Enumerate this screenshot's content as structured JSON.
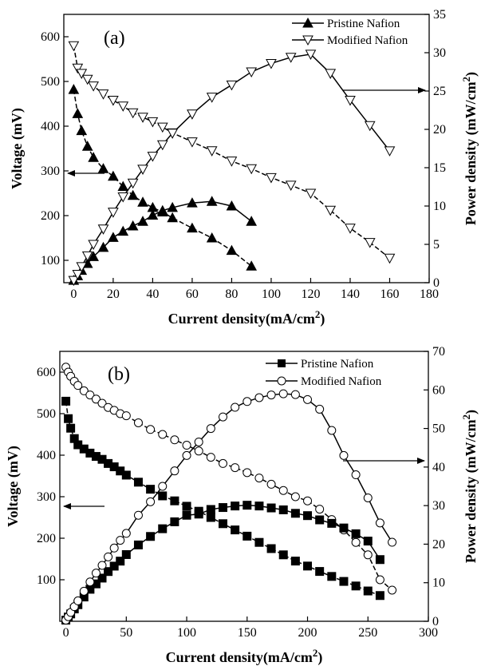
{
  "chart_data": [
    {
      "type": "line",
      "panel_label": "(a)",
      "xlabel": "Current density(mA/cm2)",
      "ylabel_left": "Voltage (mV)",
      "ylabel_right": "Power density (mW/cm2)",
      "xlim": [
        -5,
        180
      ],
      "ylim_left": [
        50,
        650
      ],
      "ylim_right": [
        0,
        35
      ],
      "x_ticks": [
        0,
        20,
        40,
        60,
        80,
        100,
        120,
        140,
        160,
        180
      ],
      "y_left_ticks": [
        100,
        200,
        300,
        400,
        500,
        600
      ],
      "y_right_ticks": [
        0,
        5,
        10,
        15,
        20,
        25,
        30,
        35
      ],
      "legend_position": "top-right",
      "legend": [
        "Pristine Nafion",
        "Modified Nafion"
      ],
      "series": [
        {
          "name": "Pristine Nafion",
          "axis": "left",
          "marker": "triangle-up",
          "x": [
            0,
            2,
            4,
            7,
            10,
            15,
            20,
            25,
            30,
            35,
            40,
            45,
            50,
            60,
            70,
            80,
            90
          ],
          "y": [
            482,
            428,
            390,
            355,
            330,
            305,
            288,
            265,
            245,
            230,
            218,
            208,
            195,
            172,
            150,
            122,
            87
          ]
        },
        {
          "name": "Modified Nafion",
          "axis": "left",
          "marker": "triangle-down",
          "x": [
            0,
            2,
            4,
            7,
            10,
            15,
            20,
            25,
            30,
            35,
            40,
            45,
            50,
            60,
            70,
            80,
            90,
            100,
            110,
            120,
            130,
            140,
            150,
            160
          ],
          "y": [
            580,
            530,
            518,
            505,
            490,
            472,
            458,
            445,
            430,
            420,
            410,
            398,
            385,
            365,
            345,
            322,
            305,
            285,
            268,
            250,
            212,
            172,
            140,
            105
          ]
        },
        {
          "name": "",
          "axis": "right",
          "marker": "triangle-up",
          "x": [
            0,
            2,
            4,
            7,
            10,
            15,
            20,
            25,
            30,
            35,
            40,
            45,
            50,
            60,
            70,
            80,
            90
          ],
          "y": [
            0.3,
            0.9,
            1.6,
            2.5,
            3.4,
            4.6,
            5.9,
            6.7,
            7.4,
            8.0,
            8.8,
            9.4,
            9.8,
            10.4,
            10.6,
            10.0,
            8.0
          ]
        },
        {
          "name": "",
          "axis": "right",
          "marker": "triangle-down",
          "x": [
            0,
            2,
            4,
            7,
            10,
            15,
            20,
            25,
            30,
            35,
            40,
            45,
            50,
            60,
            70,
            80,
            90,
            100,
            110,
            120,
            130,
            140,
            150,
            160
          ],
          "y": [
            0.3,
            1.1,
            2.1,
            3.5,
            5.0,
            7.0,
            9.2,
            11.2,
            13.0,
            14.8,
            16.5,
            18.0,
            19.5,
            22.0,
            24.2,
            25.8,
            27.5,
            28.6,
            29.4,
            29.8,
            27.3,
            23.8,
            20.5,
            17.2
          ]
        }
      ]
    },
    {
      "type": "line",
      "panel_label": "(b)",
      "xlabel": "Current density(mA/cm2)",
      "ylabel_left": "Voltage (mV)",
      "ylabel_right": "Power density (mW/cm2)",
      "xlim": [
        -5,
        300
      ],
      "ylim_left": [
        0,
        650
      ],
      "ylim_right": [
        0,
        70
      ],
      "x_ticks": [
        0,
        50,
        100,
        150,
        200,
        250,
        300
      ],
      "y_left_ticks": [
        100,
        200,
        300,
        400,
        500,
        600
      ],
      "y_right_ticks": [
        0,
        10,
        20,
        30,
        40,
        50,
        60,
        70
      ],
      "legend_position": "top-right",
      "legend": [
        "Pristine Nafion",
        "Modified Nafion"
      ],
      "series": [
        {
          "name": "Pristine Nafion",
          "axis": "left",
          "marker": "square",
          "x": [
            0,
            2,
            4,
            7,
            10,
            15,
            20,
            25,
            30,
            35,
            40,
            45,
            50,
            60,
            70,
            80,
            90,
            100,
            110,
            120,
            130,
            140,
            150,
            160,
            170,
            180,
            190,
            200,
            210,
            220,
            230,
            240,
            250,
            260
          ],
          "y": [
            530,
            488,
            465,
            440,
            425,
            415,
            405,
            397,
            390,
            380,
            372,
            362,
            352,
            335,
            318,
            302,
            290,
            277,
            265,
            250,
            235,
            220,
            205,
            190,
            175,
            160,
            145,
            133,
            120,
            108,
            96,
            85,
            73,
            62
          ]
        },
        {
          "name": "Modified Nafion",
          "axis": "left",
          "marker": "circle",
          "x": [
            0,
            2,
            4,
            7,
            10,
            15,
            20,
            25,
            30,
            35,
            40,
            45,
            50,
            60,
            70,
            80,
            90,
            100,
            110,
            120,
            130,
            140,
            150,
            160,
            170,
            180,
            190,
            200,
            210,
            220,
            230,
            240,
            250,
            260,
            270
          ],
          "y": [
            612,
            600,
            590,
            578,
            568,
            555,
            545,
            535,
            525,
            515,
            508,
            500,
            495,
            478,
            462,
            450,
            437,
            424,
            410,
            395,
            380,
            370,
            358,
            345,
            330,
            315,
            300,
            290,
            270,
            245,
            220,
            190,
            160,
            100,
            75
          ]
        },
        {
          "name": "",
          "axis": "right",
          "marker": "square",
          "x": [
            0,
            2,
            4,
            7,
            10,
            15,
            20,
            25,
            30,
            35,
            40,
            45,
            50,
            60,
            70,
            80,
            90,
            100,
            110,
            120,
            130,
            140,
            150,
            160,
            170,
            180,
            190,
            200,
            210,
            220,
            230,
            240,
            250,
            260
          ],
          "y": [
            0.3,
            1.1,
            1.9,
            3.2,
            4.3,
            6.3,
            8.3,
            9.7,
            11.2,
            12.9,
            14.3,
            15.6,
            17.3,
            19.8,
            22.0,
            24.0,
            25.8,
            27.5,
            27.8,
            29.0,
            29.5,
            29.9,
            30.1,
            29.9,
            29.4,
            28.9,
            28.0,
            27.4,
            26.3,
            25.4,
            24.2,
            22.7,
            20.8,
            16.0
          ]
        },
        {
          "name": "",
          "axis": "right",
          "marker": "circle",
          "x": [
            0,
            2,
            4,
            7,
            10,
            15,
            20,
            25,
            30,
            35,
            40,
            45,
            50,
            60,
            70,
            80,
            90,
            100,
            110,
            120,
            130,
            140,
            150,
            160,
            170,
            180,
            190,
            200,
            210,
            220,
            230,
            240,
            250,
            260,
            270
          ],
          "y": [
            0.3,
            1.2,
            2.3,
            3.8,
            5.3,
            7.8,
            10.2,
            12.5,
            14.5,
            16.7,
            19.0,
            21.0,
            22.8,
            27.5,
            31.0,
            35.0,
            39.0,
            43.0,
            46.5,
            50.0,
            53.0,
            55.5,
            57.0,
            58.0,
            58.7,
            59.0,
            58.8,
            57.5,
            55.0,
            49.5,
            43.0,
            38.0,
            32.0,
            25.5,
            20.5
          ]
        }
      ]
    }
  ]
}
